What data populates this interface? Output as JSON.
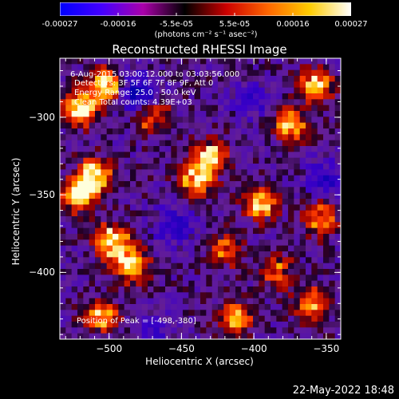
{
  "colorbar": {
    "ticks": [
      "-0.00027",
      "-0.00016",
      "-5.5e-05",
      "5.5e-05",
      "0.00016",
      "0.00027"
    ],
    "unit_label": "(photons cm⁻² s⁻¹ asec⁻²)",
    "colors": [
      "#0000ff",
      "#4400ff",
      "#aa00aa",
      "#000000",
      "#cc0000",
      "#ff6600",
      "#ffcc00",
      "#ffffff"
    ]
  },
  "info": {
    "time": "6-Aug-2015 03:00:12.000 to 03:03:56.000",
    "detectors": "Detectors: 3F 5F 6F 7F 8F 9F, Att 0",
    "energy": "Energy Range: 25.0 - 50.0 keV",
    "clean": "Clean    Total counts: 4.39E+03",
    "peak": "Position of Peak = [-498,-380]"
  },
  "timestamp": "22-May-2022 18:48",
  "chart_data": {
    "type": "heatmap",
    "title": "Reconstructed RHESSI Image",
    "xlabel": "Heliocentric X (arcsec)",
    "ylabel": "Heliocentric Y (arcsec)",
    "xlim": [
      -534,
      -340
    ],
    "ylim": [
      -443,
      -262
    ],
    "x_ticks": [
      -500,
      -450,
      -400,
      -350
    ],
    "y_ticks": [
      -300,
      -350,
      -400
    ],
    "x_tick_labels": [
      "−500",
      "−450",
      "−400",
      "−350"
    ],
    "y_tick_labels": [
      "−300",
      "−350",
      "−400"
    ],
    "peak": [
      -498,
      -380
    ],
    "bright_regions": [
      {
        "x": -519,
        "y": -295,
        "intensity": 0.95
      },
      {
        "x": -503,
        "y": -280,
        "intensity": 0.85
      },
      {
        "x": -520,
        "y": -350,
        "intensity": 0.95
      },
      {
        "x": -510,
        "y": -338,
        "intensity": 0.85
      },
      {
        "x": -498,
        "y": -380,
        "intensity": 1.0
      },
      {
        "x": -485,
        "y": -395,
        "intensity": 0.8
      },
      {
        "x": -505,
        "y": -428,
        "intensity": 0.7
      },
      {
        "x": -440,
        "y": -340,
        "intensity": 0.9
      },
      {
        "x": -430,
        "y": -325,
        "intensity": 0.7
      },
      {
        "x": -413,
        "y": -430,
        "intensity": 0.7
      },
      {
        "x": -395,
        "y": -355,
        "intensity": 0.75
      },
      {
        "x": -375,
        "y": -305,
        "intensity": 0.7
      },
      {
        "x": -358,
        "y": -280,
        "intensity": 0.8
      },
      {
        "x": -353,
        "y": -365,
        "intensity": 0.7
      },
      {
        "x": -360,
        "y": -420,
        "intensity": 0.6
      },
      {
        "x": -383,
        "y": -400,
        "intensity": 0.5
      },
      {
        "x": -470,
        "y": -300,
        "intensity": 0.55
      },
      {
        "x": -420,
        "y": -385,
        "intensity": 0.55
      }
    ],
    "dark_regions": [
      {
        "x": -480,
        "y": -285,
        "intensity": 0.9
      },
      {
        "x": -455,
        "y": -370,
        "intensity": 0.6
      },
      {
        "x": -350,
        "y": -340,
        "intensity": 0.55
      },
      {
        "x": -470,
        "y": -440,
        "intensity": 0.5
      },
      {
        "x": -400,
        "y": -290,
        "intensity": 0.4
      }
    ]
  }
}
